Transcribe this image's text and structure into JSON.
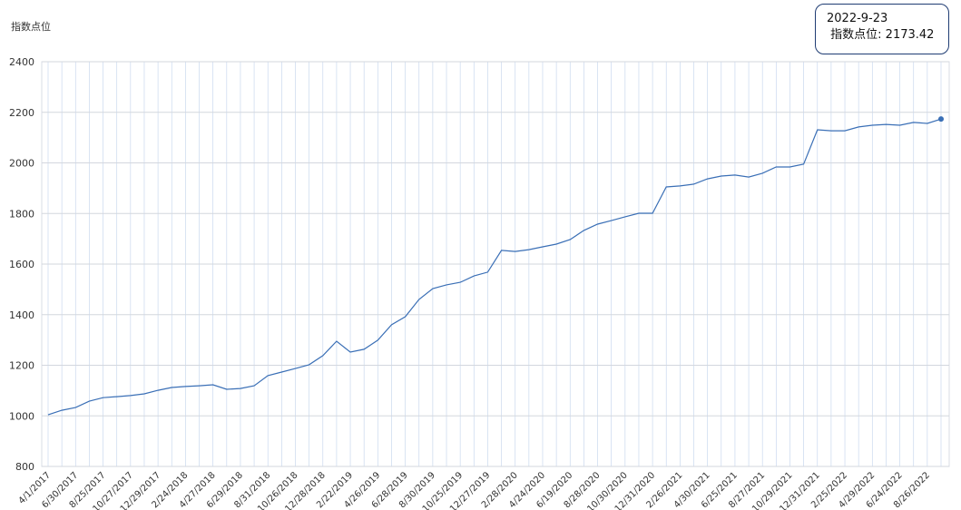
{
  "chart_data": {
    "type": "line",
    "y_label": "指数点位",
    "categories": [
      "4/1/2017",
      null,
      "6/30/2017",
      null,
      "8/25/2017",
      null,
      "10/27/2017",
      null,
      "12/29/2017",
      null,
      "2/24/2018",
      null,
      "4/27/2018",
      null,
      "6/29/2018",
      null,
      "8/31/2018",
      null,
      "10/26/2018",
      null,
      "12/28/2018",
      null,
      "2/22/2019",
      null,
      "4/26/2019",
      null,
      "6/28/2019",
      null,
      "8/30/2019",
      null,
      "10/25/2019",
      null,
      "12/27/2019",
      null,
      "2/28/2020",
      null,
      "4/24/2020",
      null,
      "6/19/2020",
      null,
      "8/28/2020",
      null,
      "10/30/2020",
      null,
      "12/31/2020",
      null,
      "2/26/2021",
      null,
      "4/30/2021",
      null,
      "6/25/2021",
      null,
      "8/27/2021",
      null,
      "10/29/2021",
      null,
      "12/31/2021",
      null,
      "2/25/2022",
      null,
      "4/29/2022",
      null,
      "6/24/2022",
      null,
      "8/26/2022",
      null
    ],
    "series": [
      {
        "name": "指数点位",
        "color": "#3a6fb6",
        "values": [
          1004,
          1022,
          1033,
          1058,
          1072,
          1076,
          1080,
          1087,
          1101,
          1112,
          1116,
          1119,
          1123,
          1105,
          1108,
          1119,
          1159,
          1173,
          1187,
          1202,
          1238,
          1295,
          1252,
          1263,
          1299,
          1360,
          1392,
          1460,
          1503,
          1518,
          1528,
          1553,
          1568,
          1654,
          1650,
          1657,
          1668,
          1679,
          1697,
          1733,
          1758,
          1772,
          1787,
          1801,
          1801,
          1905,
          1909,
          1916,
          1937,
          1948,
          1952,
          1944,
          1959,
          1984,
          1984,
          1995,
          2131,
          2127,
          2127,
          2142,
          2149,
          2152,
          2149,
          2160,
          2156,
          2173.42
        ]
      }
    ],
    "ylim": [
      800,
      2400
    ],
    "yticks": [
      800,
      1000,
      1200,
      1400,
      1600,
      1800,
      2000,
      2200,
      2400
    ],
    "grid": true,
    "tooltip": {
      "date": "2022-9-23",
      "label": "指数点位:"
    }
  }
}
